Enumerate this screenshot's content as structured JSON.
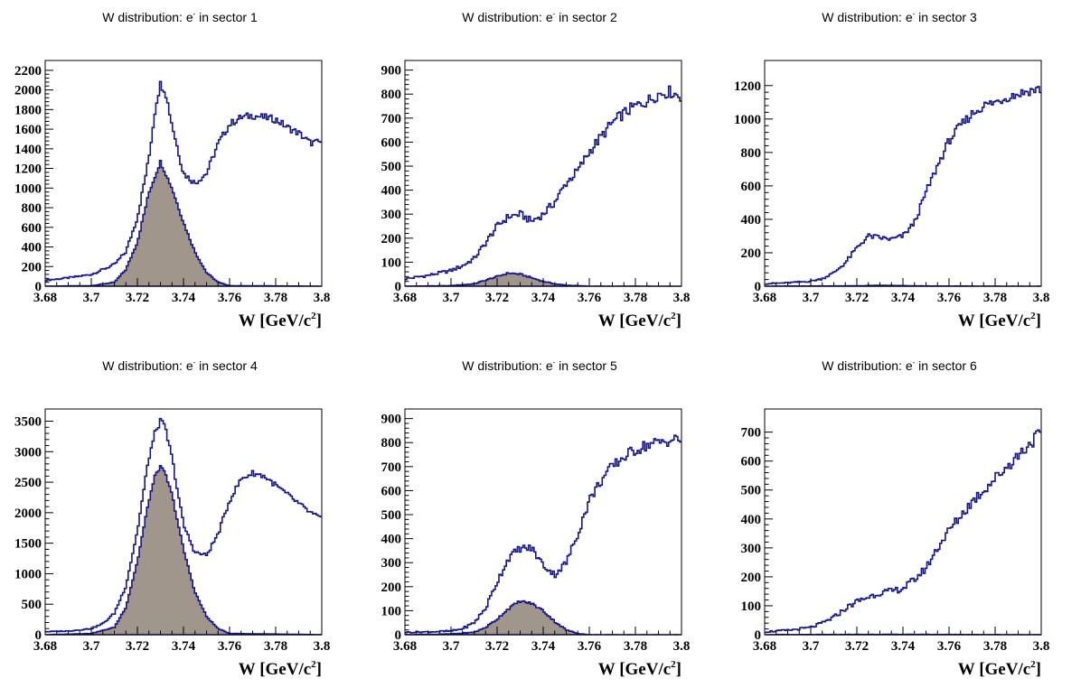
{
  "colors": {
    "total_line": "#14148c",
    "signal_fill": "#a0968c",
    "signal_line": "#14148c",
    "axis": "#000000",
    "background": "#ffffff"
  },
  "chart_data": [
    {
      "type": "line",
      "title_prefix": "W distribution: e",
      "title_sup": "-",
      "title_suffix": " in sector 1",
      "xlabel": "W [GeV/c",
      "xlabel_sup": "2",
      "xlabel_end": "]",
      "xlim": [
        3.68,
        3.8
      ],
      "ylim": [
        0,
        2300
      ],
      "x_ticks": [
        3.68,
        3.7,
        3.72,
        3.74,
        3.76,
        3.78,
        3.8
      ],
      "y_ticks": [
        0,
        200,
        400,
        600,
        800,
        1000,
        1200,
        1400,
        1600,
        1800,
        2000,
        2200
      ],
      "series": [
        {
          "role": "total",
          "x": [
            3.68,
            3.69,
            3.7,
            3.71,
            3.715,
            3.72,
            3.725,
            3.728,
            3.73,
            3.732,
            3.735,
            3.74,
            3.745,
            3.75,
            3.755,
            3.76,
            3.765,
            3.77,
            3.775,
            3.78,
            3.785,
            3.79,
            3.795,
            3.8
          ],
          "y": [
            60,
            85,
            120,
            220,
            350,
            700,
            1300,
            1850,
            2060,
            2000,
            1650,
            1150,
            1050,
            1150,
            1450,
            1650,
            1720,
            1740,
            1720,
            1700,
            1620,
            1560,
            1460,
            1470
          ]
        },
        {
          "role": "signal",
          "x": [
            3.68,
            3.7,
            3.71,
            3.715,
            3.72,
            3.725,
            3.73,
            3.735,
            3.74,
            3.745,
            3.75,
            3.755,
            3.76,
            3.8
          ],
          "y": [
            0,
            5,
            40,
            170,
            450,
            950,
            1270,
            1000,
            650,
            350,
            140,
            40,
            5,
            0
          ]
        }
      ]
    },
    {
      "type": "line",
      "title_prefix": "W distribution: e",
      "title_sup": "-",
      "title_suffix": " in sector 2",
      "xlabel": "W [GeV/c",
      "xlabel_sup": "2",
      "xlabel_end": "]",
      "xlim": [
        3.68,
        3.8
      ],
      "ylim": [
        0,
        940
      ],
      "x_ticks": [
        3.68,
        3.7,
        3.72,
        3.74,
        3.76,
        3.78,
        3.8
      ],
      "y_ticks": [
        0,
        100,
        200,
        300,
        400,
        500,
        600,
        700,
        800,
        900
      ],
      "series": [
        {
          "role": "total",
          "x": [
            3.68,
            3.69,
            3.7,
            3.705,
            3.71,
            3.715,
            3.72,
            3.725,
            3.73,
            3.735,
            3.74,
            3.745,
            3.75,
            3.755,
            3.76,
            3.765,
            3.77,
            3.775,
            3.78,
            3.785,
            3.79,
            3.795,
            3.8
          ],
          "y": [
            30,
            45,
            65,
            85,
            115,
            180,
            250,
            290,
            300,
            270,
            300,
            350,
            430,
            480,
            560,
            620,
            680,
            720,
            750,
            770,
            800,
            810,
            790
          ]
        },
        {
          "role": "signal",
          "x": [
            3.68,
            3.7,
            3.71,
            3.715,
            3.72,
            3.725,
            3.73,
            3.735,
            3.74,
            3.745,
            3.75,
            3.755,
            3.76,
            3.8
          ],
          "y": [
            0,
            2,
            10,
            25,
            40,
            55,
            50,
            35,
            20,
            10,
            4,
            2,
            0,
            0
          ]
        }
      ]
    },
    {
      "type": "line",
      "title_prefix": "W distribution: e",
      "title_sup": "-",
      "title_suffix": " in sector 3",
      "xlabel": "W [GeV/c",
      "xlabel_sup": "2",
      "xlabel_end": "]",
      "xlim": [
        3.68,
        3.8
      ],
      "ylim": [
        0,
        1350
      ],
      "x_ticks": [
        3.68,
        3.7,
        3.72,
        3.74,
        3.76,
        3.78,
        3.8
      ],
      "y_ticks": [
        0,
        200,
        400,
        600,
        800,
        1000,
        1200
      ],
      "series": [
        {
          "role": "total",
          "x": [
            3.68,
            3.69,
            3.7,
            3.705,
            3.71,
            3.715,
            3.72,
            3.725,
            3.73,
            3.735,
            3.74,
            3.745,
            3.75,
            3.755,
            3.76,
            3.765,
            3.77,
            3.775,
            3.78,
            3.785,
            3.79,
            3.795,
            3.8
          ],
          "y": [
            15,
            20,
            30,
            45,
            80,
            140,
            230,
            300,
            290,
            280,
            300,
            380,
            560,
            720,
            870,
            960,
            1030,
            1080,
            1100,
            1130,
            1150,
            1170,
            1180
          ]
        },
        {
          "role": "signal",
          "x": [
            3.68,
            3.72,
            3.73,
            3.74,
            3.75,
            3.8
          ],
          "y": [
            0,
            2,
            5,
            3,
            1,
            0
          ]
        }
      ]
    },
    {
      "type": "line",
      "title_prefix": "W distribution: e",
      "title_sup": "-",
      "title_suffix": " in sector 4",
      "xlabel": "W [GeV/c",
      "xlabel_sup": "2",
      "xlabel_end": "]",
      "xlim": [
        3.68,
        3.8
      ],
      "ylim": [
        0,
        3700
      ],
      "x_ticks": [
        3.68,
        3.7,
        3.72,
        3.74,
        3.76,
        3.78,
        3.8
      ],
      "y_ticks": [
        0,
        500,
        1000,
        1500,
        2000,
        2500,
        3000,
        3500
      ],
      "series": [
        {
          "role": "total",
          "x": [
            3.68,
            3.69,
            3.7,
            3.705,
            3.71,
            3.715,
            3.72,
            3.725,
            3.728,
            3.73,
            3.732,
            3.735,
            3.74,
            3.745,
            3.75,
            3.755,
            3.76,
            3.765,
            3.77,
            3.775,
            3.78,
            3.785,
            3.79,
            3.795,
            3.8
          ],
          "y": [
            50,
            60,
            100,
            180,
            350,
            800,
            1700,
            2900,
            3350,
            3500,
            3400,
            2900,
            1800,
            1350,
            1300,
            1650,
            2200,
            2550,
            2650,
            2600,
            2450,
            2300,
            2150,
            2000,
            1900
          ]
        },
        {
          "role": "signal",
          "x": [
            3.68,
            3.7,
            3.71,
            3.715,
            3.72,
            3.725,
            3.728,
            3.73,
            3.732,
            3.735,
            3.74,
            3.745,
            3.75,
            3.755,
            3.76,
            3.8
          ],
          "y": [
            0,
            20,
            120,
            450,
            1200,
            2200,
            2650,
            2750,
            2650,
            2300,
            1400,
            700,
            300,
            100,
            20,
            0
          ]
        }
      ]
    },
    {
      "type": "line",
      "title_prefix": "W distribution: e",
      "title_sup": "-",
      "title_suffix": " in sector 5",
      "xlabel": "W [GeV/c",
      "xlabel_sup": "2",
      "xlabel_end": "]",
      "xlim": [
        3.68,
        3.8
      ],
      "ylim": [
        0,
        940
      ],
      "x_ticks": [
        3.68,
        3.7,
        3.72,
        3.74,
        3.76,
        3.78,
        3.8
      ],
      "y_ticks": [
        0,
        100,
        200,
        300,
        400,
        500,
        600,
        700,
        800,
        900
      ],
      "series": [
        {
          "role": "total",
          "x": [
            3.68,
            3.69,
            3.7,
            3.705,
            3.71,
            3.715,
            3.72,
            3.725,
            3.73,
            3.735,
            3.74,
            3.745,
            3.75,
            3.755,
            3.76,
            3.765,
            3.77,
            3.775,
            3.78,
            3.785,
            3.79,
            3.795,
            3.8
          ],
          "y": [
            10,
            12,
            15,
            25,
            50,
            110,
            220,
            320,
            360,
            360,
            290,
            250,
            300,
            420,
            560,
            640,
            700,
            740,
            770,
            790,
            800,
            810,
            815
          ]
        },
        {
          "role": "signal",
          "x": [
            3.68,
            3.7,
            3.71,
            3.715,
            3.72,
            3.725,
            3.73,
            3.735,
            3.74,
            3.745,
            3.75,
            3.755,
            3.76,
            3.8
          ],
          "y": [
            0,
            3,
            10,
            30,
            65,
            110,
            140,
            130,
            100,
            55,
            20,
            5,
            0,
            0
          ]
        }
      ]
    },
    {
      "type": "line",
      "title_prefix": "W distribution: e",
      "title_sup": "-",
      "title_suffix": " in sector 6",
      "xlabel": "W [GeV/c",
      "xlabel_sup": "2",
      "xlabel_end": "]",
      "xlim": [
        3.68,
        3.8
      ],
      "ylim": [
        0,
        780
      ],
      "x_ticks": [
        3.68,
        3.7,
        3.72,
        3.74,
        3.76,
        3.78,
        3.8
      ],
      "y_ticks": [
        0,
        100,
        200,
        300,
        400,
        500,
        600,
        700
      ],
      "series": [
        {
          "role": "total",
          "x": [
            3.68,
            3.69,
            3.7,
            3.705,
            3.71,
            3.715,
            3.72,
            3.725,
            3.73,
            3.735,
            3.74,
            3.745,
            3.75,
            3.755,
            3.76,
            3.765,
            3.77,
            3.775,
            3.78,
            3.785,
            3.79,
            3.795,
            3.8
          ],
          "y": [
            10,
            15,
            25,
            40,
            60,
            90,
            115,
            130,
            145,
            150,
            160,
            190,
            230,
            300,
            360,
            410,
            460,
            500,
            540,
            580,
            620,
            660,
            700
          ]
        },
        {
          "role": "signal",
          "x": [
            3.68,
            3.73,
            3.74,
            3.8
          ],
          "y": [
            0,
            1,
            1,
            0
          ]
        }
      ]
    }
  ]
}
